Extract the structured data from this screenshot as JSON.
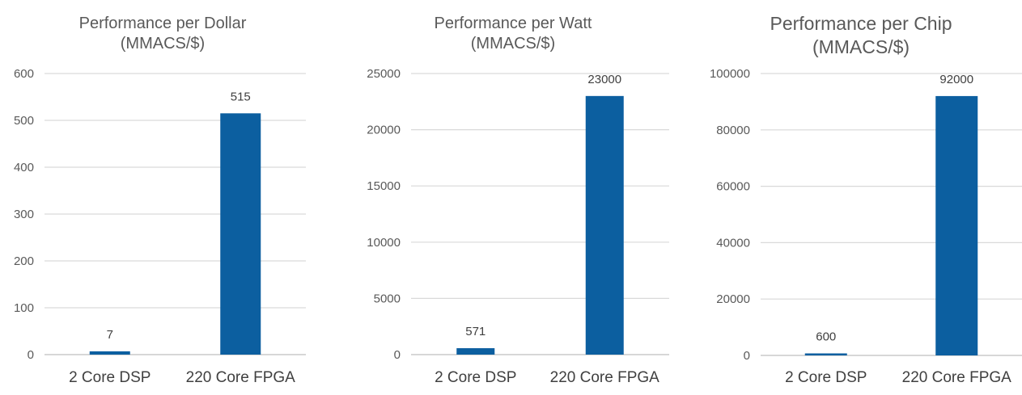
{
  "chart_data": [
    {
      "type": "bar",
      "title": "Performance per Dollar",
      "subtitle": "(MMACS/$)",
      "categories": [
        "2 Core DSP",
        "220 Core FPGA"
      ],
      "values": [
        7,
        515
      ],
      "data_labels": [
        "7",
        "515"
      ],
      "yticks": [
        "0",
        "100",
        "200",
        "300",
        "400",
        "500",
        "600"
      ],
      "ylim": [
        0,
        600
      ],
      "grid": true,
      "color": "#0c5fa0"
    },
    {
      "type": "bar",
      "title": "Performance per Watt",
      "subtitle": "(MMACS/$)",
      "categories": [
        "2 Core DSP",
        "220 Core FPGA"
      ],
      "values": [
        571,
        23000
      ],
      "data_labels": [
        "571",
        "23000"
      ],
      "yticks": [
        "0",
        "5000",
        "10000",
        "15000",
        "20000",
        "25000"
      ],
      "ylim": [
        0,
        25000
      ],
      "grid": true,
      "color": "#0c5fa0"
    },
    {
      "type": "bar",
      "title": "Performance per Chip",
      "subtitle": "(MMACS/$)",
      "categories": [
        "2 Core DSP",
        "220 Core FPGA"
      ],
      "values": [
        600,
        92000
      ],
      "data_labels": [
        "600",
        "92000"
      ],
      "yticks": [
        "0",
        "20000",
        "40000",
        "60000",
        "80000",
        "100000"
      ],
      "ylim": [
        0,
        100000
      ],
      "grid": true,
      "color": "#0c5fa0"
    }
  ]
}
